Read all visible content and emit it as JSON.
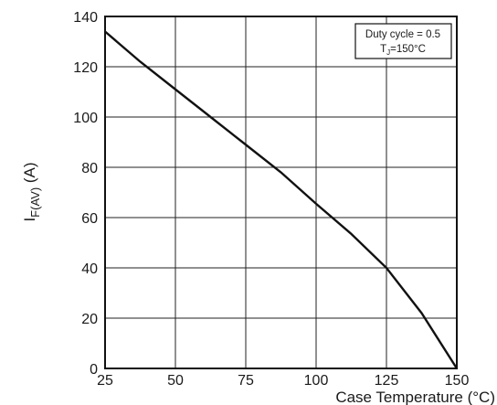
{
  "chart_data": {
    "type": "line",
    "xlabel": "Case Temperature (°C)",
    "ylabel_main": "I",
    "ylabel_sub": "F(AV)",
    "ylabel_unit": " (A)",
    "xlim": [
      25,
      150
    ],
    "ylim": [
      0,
      140
    ],
    "x_ticks": [
      25,
      50,
      75,
      100,
      125,
      150
    ],
    "y_ticks": [
      0,
      20,
      40,
      60,
      80,
      100,
      120,
      140
    ],
    "grid": true,
    "legend": "top-right",
    "annotation": {
      "line1": "Duty cycle = 0.5",
      "line2_main": "T",
      "line2_sub": "J",
      "line2_rest": "=150°C"
    },
    "series": [
      {
        "x": [
          25,
          37.5,
          50,
          62.5,
          75,
          87.5,
          100,
          112.5,
          125,
          137.5,
          150
        ],
        "y": [
          134,
          122,
          111,
          100,
          89,
          78,
          65.5,
          53.5,
          40,
          22,
          0
        ]
      }
    ],
    "color": "#111111"
  }
}
